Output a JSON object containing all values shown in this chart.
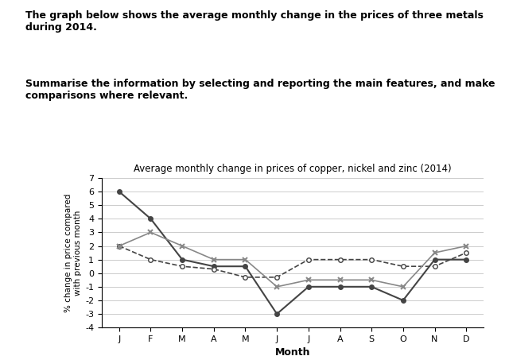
{
  "title": "Average monthly change in prices of copper, nickel and zinc (2014)",
  "header_text1": "The graph below shows the average monthly change in the prices of three metals\nduring 2014.",
  "header_text2": "Summarise the information by selecting and reporting the main features, and make\ncomparisons where relevant.",
  "xlabel": "Month",
  "ylabel": "% change in price compared\nwith previous month",
  "months": [
    "J",
    "F",
    "M",
    "A",
    "M",
    "J",
    "J",
    "A",
    "S",
    "O",
    "N",
    "D"
  ],
  "copper": [
    2.0,
    1.0,
    0.5,
    0.3,
    -0.3,
    -0.3,
    1.0,
    1.0,
    1.0,
    0.5,
    0.5,
    1.5
  ],
  "nickel": [
    6.0,
    4.0,
    1.0,
    0.5,
    0.5,
    -3.0,
    -1.0,
    -1.0,
    -1.0,
    -2.0,
    1.0,
    1.0
  ],
  "zinc": [
    2.0,
    3.0,
    2.0,
    1.0,
    1.0,
    -1.0,
    -0.5,
    -0.5,
    -0.5,
    -1.0,
    1.5,
    2.0
  ],
  "ylim": [
    -4,
    7
  ],
  "yticks": [
    -4,
    -3,
    -2,
    -1,
    0,
    1,
    2,
    3,
    4,
    5,
    6,
    7
  ],
  "background_color": "#ffffff",
  "grid_color": "#cccccc"
}
